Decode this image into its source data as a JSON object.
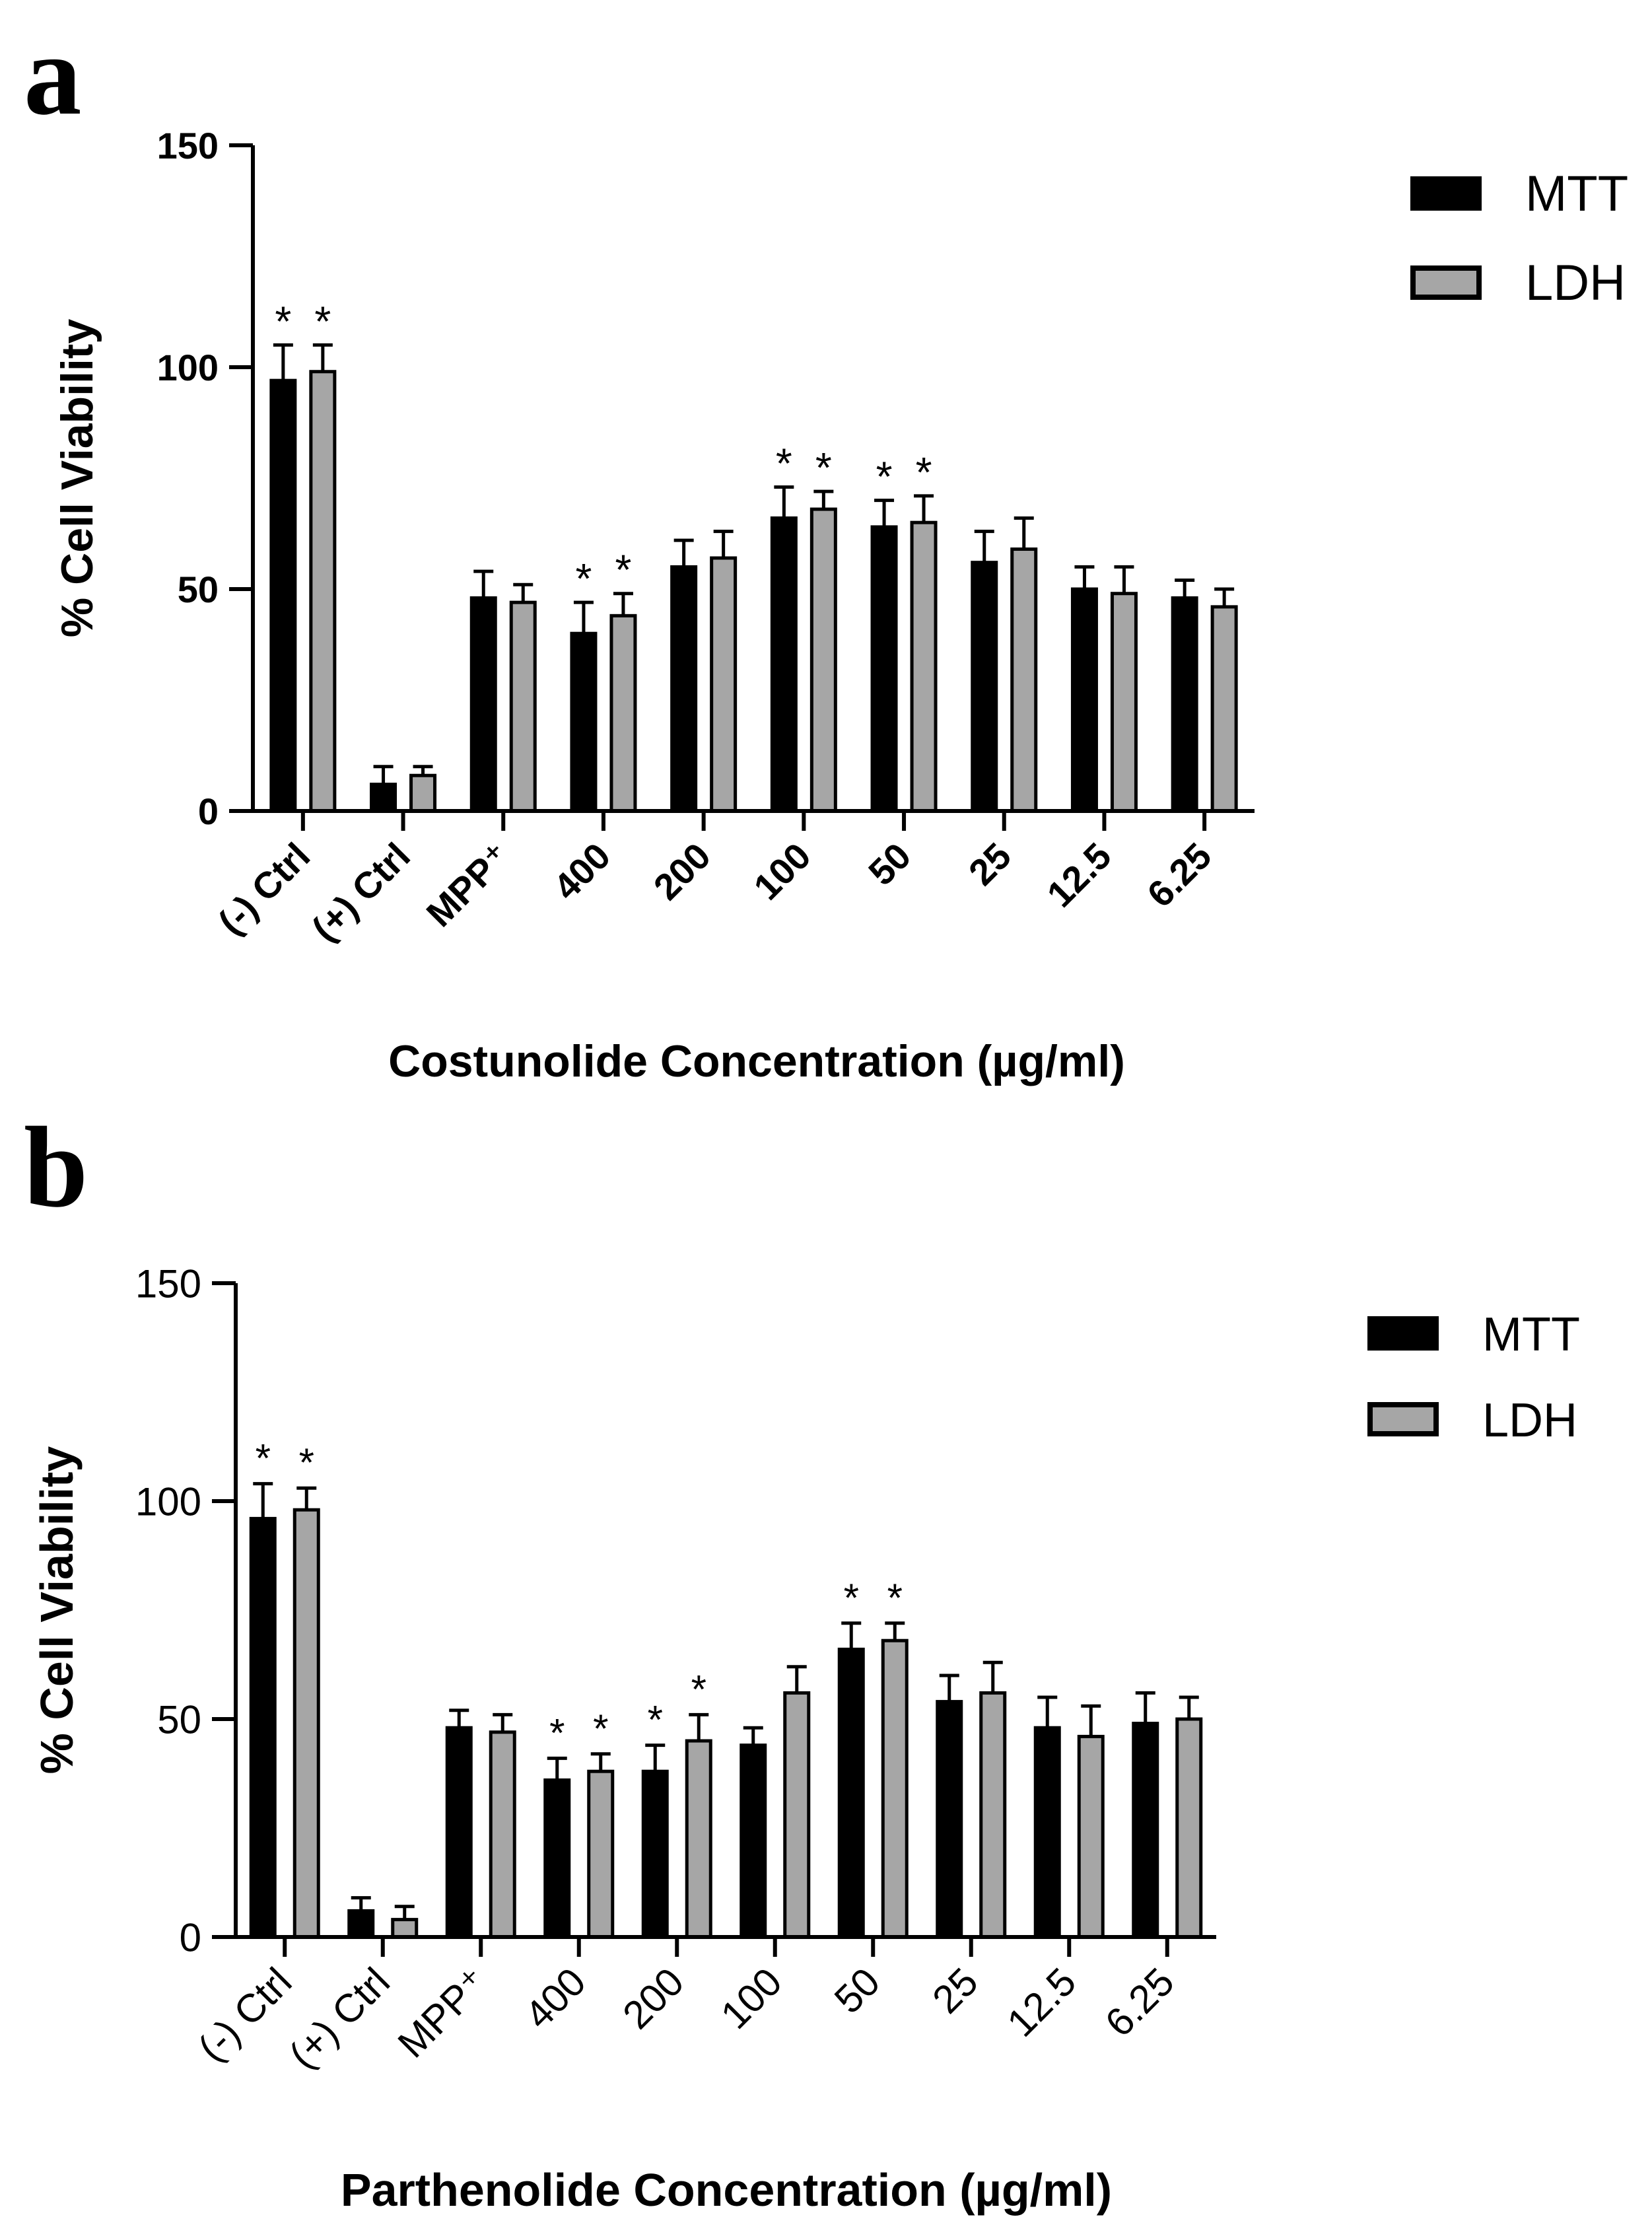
{
  "chart_data": [
    {
      "panel": "a",
      "type": "bar",
      "title": "",
      "xlabel": "Costunolide Concentration (µg/ml)",
      "ylabel": "% Cell Viability",
      "ylim": [
        0,
        150
      ],
      "yticks": [
        "0",
        "50",
        "100",
        "150"
      ],
      "categories": [
        "(-) Ctrl",
        "(+) Ctrl",
        "MPP⁺",
        "400",
        "200",
        "100",
        "50",
        "25",
        "12.5",
        "6.25"
      ],
      "series": [
        {
          "name": "MTT",
          "color": "#000000",
          "values": [
            97,
            6,
            48,
            40,
            55,
            66,
            64,
            56,
            50,
            48
          ],
          "errors": [
            8,
            4,
            6,
            7,
            6,
            7,
            6,
            7,
            5,
            4
          ]
        },
        {
          "name": "LDH",
          "color": "#a6a6a6",
          "values": [
            99,
            8,
            47,
            44,
            57,
            68,
            65,
            59,
            49,
            46
          ],
          "errors": [
            6,
            2,
            4,
            5,
            6,
            4,
            6,
            7,
            6,
            4
          ]
        }
      ],
      "significance": [
        "*",
        "",
        "",
        "*",
        "",
        "*",
        "*",
        "",
        "",
        ""
      ],
      "legend_position": "top-right",
      "grid": false
    },
    {
      "panel": "b",
      "type": "bar",
      "title": "",
      "xlabel": "Parthenolide Concentration (µg/ml)",
      "ylabel": "% Cell Viability",
      "ylim": [
        0,
        150
      ],
      "yticks": [
        "0",
        "50",
        "100",
        "150"
      ],
      "categories": [
        "(-) Ctrl",
        "(+) Ctrl",
        "MPP⁺",
        "400",
        "200",
        "100",
        "50",
        "25",
        "12.5",
        "6.25"
      ],
      "series": [
        {
          "name": "MTT",
          "color": "#000000",
          "values": [
            96,
            6,
            48,
            36,
            38,
            44,
            66,
            54,
            48,
            49
          ],
          "errors": [
            8,
            3,
            4,
            5,
            6,
            4,
            6,
            6,
            7,
            7
          ]
        },
        {
          "name": "LDH",
          "color": "#a6a6a6",
          "values": [
            98,
            4,
            47,
            38,
            45,
            56,
            68,
            56,
            46,
            50
          ],
          "errors": [
            5,
            3,
            4,
            4,
            6,
            6,
            4,
            7,
            7,
            5
          ]
        }
      ],
      "significance": [
        "*",
        "",
        "",
        "*",
        "*",
        "",
        "*",
        "",
        "",
        ""
      ],
      "legend_position": "top-right",
      "grid": false
    }
  ]
}
